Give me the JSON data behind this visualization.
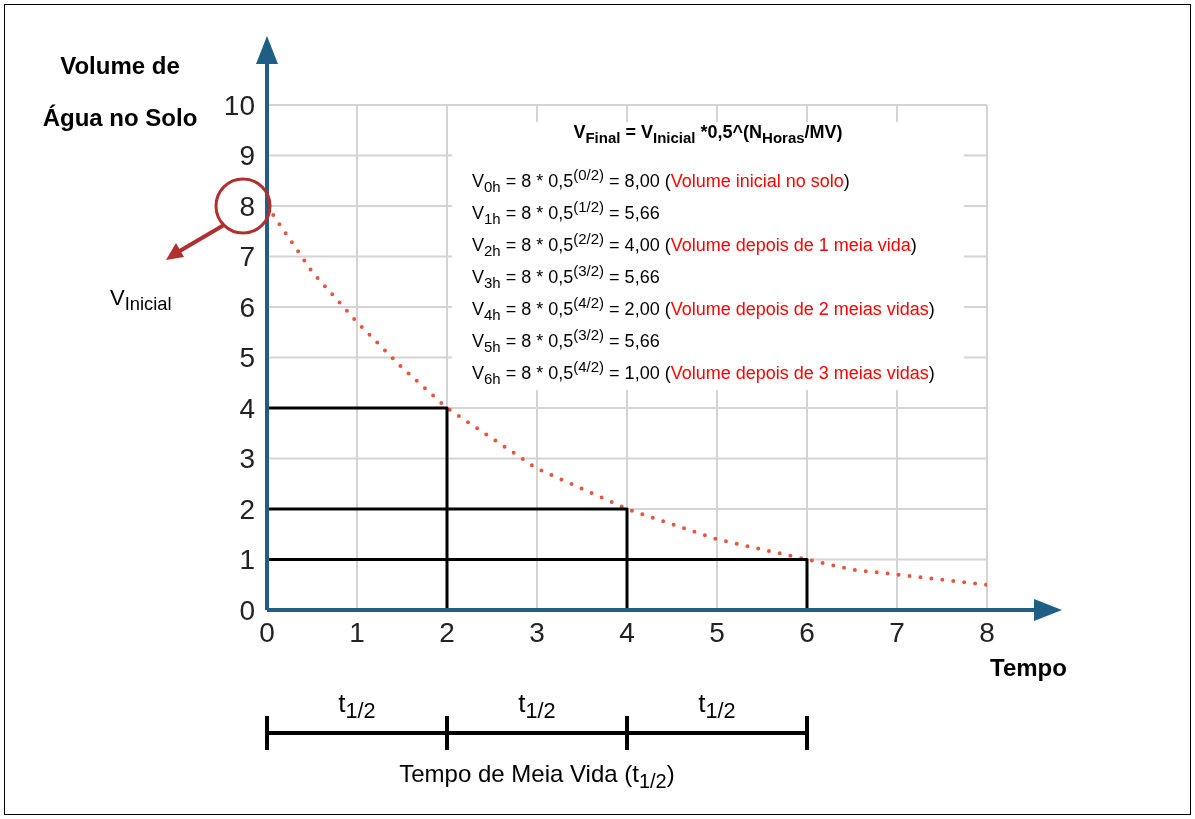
{
  "chart_data": {
    "type": "line",
    "xlabel": "Tempo",
    "ylabel": "Volume de Água no Solo",
    "xlim": [
      0,
      8
    ],
    "xticks": [
      0,
      1,
      2,
      3,
      4,
      5,
      6,
      7,
      8
    ],
    "ylim": [
      0,
      10
    ],
    "yticks": [
      0,
      1,
      2,
      3,
      4,
      5,
      6,
      7,
      8,
      9,
      10
    ],
    "grid": true,
    "marker": "none",
    "line_style": "solid",
    "series": [
      {
        "color": "#e8553f",
        "line_style": "dotted",
        "x": [
          0,
          0.5,
          1,
          1.5,
          2,
          2.5,
          3,
          3.5,
          4,
          4.5,
          5,
          5.5,
          6,
          6.5,
          7,
          7.5,
          8
        ],
        "values": [
          8,
          6.7,
          5.7,
          4.8,
          4,
          3.4,
          2.8,
          2.4,
          2,
          1.7,
          1.4,
          1.2,
          1,
          0.8,
          0.7,
          0.6,
          0.5
        ]
      },
      {
        "color": "#000000",
        "x": [
          0,
          2,
          2
        ],
        "values": [
          4,
          4,
          0
        ]
      },
      {
        "color": "#000000",
        "x": [
          0,
          4,
          4
        ],
        "values": [
          2,
          2,
          0
        ]
      },
      {
        "color": "#000000",
        "x": [
          0,
          6,
          6
        ],
        "values": [
          1,
          1,
          0
        ]
      }
    ],
    "annotations": [
      "V$_{Final}$ = V$_{Inicial}$ *0,5^(N$_{Horas}$/MV)",
      "V$_{0h}$ = 8 * 0,5$^{(0/2)}$ = 8,00 (Volume inicial no solo)",
      "V$_{1h}$ = 8 * 0,5$^{(1/2)}$ = 5,66",
      "V$_{2h}$ = 8 * 0,5$^{(2/2)}$ = 4,00 (Volume depois de 1 meia vida)",
      "V$_{3h}$ = 8 * 0,5$^{(3/2)}$ = 5,66",
      "V$_{4h}$ = 8 * 0,5$^{(4/2)}$ = 2,00 (Volume depois de 2 meias vidas)",
      "V$_{5h}$ = 8 * 0,5$^{(3/2)}$ = 5,66",
      "V$_{6h}$ = 8 * 0,5$^{(4/2)}$ = 1,00 (Volume depois de 3 meias vidas)",
      "V$_{Inicial}$",
      "t$_{1/2}$",
      "t$_{1/2}$",
      "t$_{1/2}$",
      "Tempo de Meia Vida (t$_{1/2}$)"
    ]
  }
}
